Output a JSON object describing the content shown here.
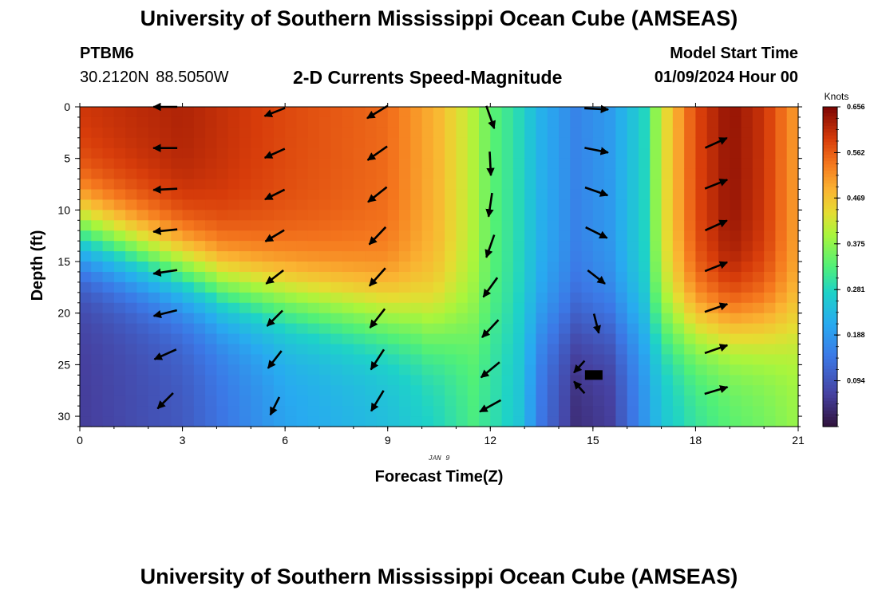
{
  "header": {
    "title": "University of Southern Mississippi Ocean Cube (AMSEAS)",
    "station": "PTBM6",
    "coords": "30.2120N  88.5050W",
    "subtitle": "2-D Currents Speed-Magnitude",
    "model_start_label": "Model Start Time",
    "model_start_date": "01/09/2024 Hour 00"
  },
  "footer": {
    "title": "University of Southern Mississippi Ocean Cube (AMSEAS)"
  },
  "chart_data": {
    "type": "heatmap",
    "title": "2-D Currents Speed-Magnitude",
    "xlabel": "Forecast Time(Z)",
    "ylabel": "Depth (ft)",
    "date_label": "JAN 9",
    "x_ticks": [
      0,
      3,
      6,
      9,
      12,
      15,
      18,
      21
    ],
    "y_ticks": [
      0,
      5,
      10,
      15,
      20,
      25,
      30
    ],
    "xlim": [
      0,
      21
    ],
    "ylim": [
      0,
      31
    ],
    "colorbar": {
      "units": "Knots",
      "min": 0.0,
      "max": 0.656,
      "ticks": [
        "0.656",
        "0.562",
        "0.469",
        "0.375",
        "0.281",
        "0.188",
        "0.094"
      ],
      "tick_values": [
        0.656,
        0.562,
        0.469,
        0.375,
        0.281,
        0.188,
        0.094
      ]
    },
    "surface_speed_by_hour": [
      {
        "t": 0,
        "v": 0.6
      },
      {
        "t": 3,
        "v": 0.62
      },
      {
        "t": 6,
        "v": 0.58
      },
      {
        "t": 9,
        "v": 0.55
      },
      {
        "t": 10.5,
        "v": 0.48
      },
      {
        "t": 11.5,
        "v": 0.4
      },
      {
        "t": 12,
        "v": 0.34
      },
      {
        "t": 12.8,
        "v": 0.29
      },
      {
        "t": 13.5,
        "v": 0.22
      },
      {
        "t": 14.5,
        "v": 0.16
      },
      {
        "t": 15.5,
        "v": 0.19
      },
      {
        "t": 16.5,
        "v": 0.28
      },
      {
        "t": 17,
        "v": 0.42
      },
      {
        "t": 18,
        "v": 0.58
      },
      {
        "t": 19,
        "v": 0.64
      },
      {
        "t": 20,
        "v": 0.6
      },
      {
        "t": 21,
        "v": 0.5
      }
    ],
    "bottom_speed_by_hour": [
      {
        "t": 0,
        "v": 0.06
      },
      {
        "t": 3,
        "v": 0.1
      },
      {
        "t": 6,
        "v": 0.2
      },
      {
        "t": 9,
        "v": 0.24
      },
      {
        "t": 10.5,
        "v": 0.28
      },
      {
        "t": 11.5,
        "v": 0.32
      },
      {
        "t": 12,
        "v": 0.3
      },
      {
        "t": 12.8,
        "v": 0.26
      },
      {
        "t": 13.5,
        "v": 0.14
      },
      {
        "t": 14.5,
        "v": 0.04
      },
      {
        "t": 15.5,
        "v": 0.06
      },
      {
        "t": 16.5,
        "v": 0.18
      },
      {
        "t": 17,
        "v": 0.25
      },
      {
        "t": 18,
        "v": 0.3
      },
      {
        "t": 19,
        "v": 0.33
      },
      {
        "t": 20,
        "v": 0.35
      },
      {
        "t": 21,
        "v": 0.38
      }
    ],
    "vectors": [
      {
        "t": 2.5,
        "d": 0,
        "dx": -1.0,
        "dy": 0.0,
        "len": 0.6
      },
      {
        "t": 2.5,
        "d": 4,
        "dx": -1.0,
        "dy": 0.0,
        "len": 0.6
      },
      {
        "t": 2.5,
        "d": 8,
        "dx": -1.0,
        "dy": 0.05,
        "len": 0.6
      },
      {
        "t": 2.5,
        "d": 12,
        "dx": -1.0,
        "dy": 0.1,
        "len": 0.6
      },
      {
        "t": 2.5,
        "d": 16,
        "dx": -1.0,
        "dy": 0.15,
        "len": 0.6
      },
      {
        "t": 2.5,
        "d": 20,
        "dx": -1.0,
        "dy": 0.25,
        "len": 0.6
      },
      {
        "t": 2.5,
        "d": 24,
        "dx": -1.0,
        "dy": 0.45,
        "len": 0.6
      },
      {
        "t": 2.5,
        "d": 28.5,
        "dx": -0.8,
        "dy": 0.8,
        "len": 0.55
      },
      {
        "t": 5.7,
        "d": 0.5,
        "dx": -1.0,
        "dy": 0.4,
        "len": 0.55
      },
      {
        "t": 5.7,
        "d": 4.5,
        "dx": -1.0,
        "dy": 0.45,
        "len": 0.55
      },
      {
        "t": 5.7,
        "d": 8.5,
        "dx": -1.0,
        "dy": 0.5,
        "len": 0.55
      },
      {
        "t": 5.7,
        "d": 12.5,
        "dx": -1.0,
        "dy": 0.6,
        "len": 0.55
      },
      {
        "t": 5.7,
        "d": 16.5,
        "dx": -0.9,
        "dy": 0.7,
        "len": 0.55
      },
      {
        "t": 5.7,
        "d": 20.5,
        "dx": -0.8,
        "dy": 0.8,
        "len": 0.55
      },
      {
        "t": 5.7,
        "d": 24.5,
        "dx": -0.7,
        "dy": 0.9,
        "len": 0.55
      },
      {
        "t": 5.7,
        "d": 29,
        "dx": -0.5,
        "dy": 1.0,
        "len": 0.5
      },
      {
        "t": 8.7,
        "d": 0.5,
        "dx": -1.0,
        "dy": 0.6,
        "len": 0.6
      },
      {
        "t": 8.7,
        "d": 4.5,
        "dx": -1.0,
        "dy": 0.7,
        "len": 0.6
      },
      {
        "t": 8.7,
        "d": 8.5,
        "dx": -1.0,
        "dy": 0.8,
        "len": 0.6
      },
      {
        "t": 8.7,
        "d": 12.5,
        "dx": -0.85,
        "dy": 0.9,
        "len": 0.6
      },
      {
        "t": 8.7,
        "d": 16.5,
        "dx": -0.8,
        "dy": 0.9,
        "len": 0.6
      },
      {
        "t": 8.7,
        "d": 20.5,
        "dx": -0.7,
        "dy": 0.9,
        "len": 0.6
      },
      {
        "t": 8.7,
        "d": 24.5,
        "dx": -0.65,
        "dy": 1.0,
        "len": 0.6
      },
      {
        "t": 8.7,
        "d": 28.5,
        "dx": -0.6,
        "dy": 1.0,
        "len": 0.6
      },
      {
        "t": 12.0,
        "d": 1.0,
        "dx": 0.35,
        "dy": 1.0,
        "len": 0.6
      },
      {
        "t": 12.0,
        "d": 5.5,
        "dx": 0.05,
        "dy": 1.0,
        "len": 0.6
      },
      {
        "t": 12.0,
        "d": 9.5,
        "dx": -0.15,
        "dy": 1.0,
        "len": 0.6
      },
      {
        "t": 12.0,
        "d": 13.5,
        "dx": -0.35,
        "dy": 1.0,
        "len": 0.6
      },
      {
        "t": 12.0,
        "d": 17.5,
        "dx": -0.65,
        "dy": 0.9,
        "len": 0.6
      },
      {
        "t": 12.0,
        "d": 21.5,
        "dx": -0.75,
        "dy": 0.8,
        "len": 0.6
      },
      {
        "t": 12.0,
        "d": 25.5,
        "dx": -0.85,
        "dy": 0.7,
        "len": 0.6
      },
      {
        "t": 12.0,
        "d": 29,
        "dx": -1.0,
        "dy": 0.55,
        "len": 0.6
      },
      {
        "t": 15.1,
        "d": 0.2,
        "dx": 1.0,
        "dy": 0.05,
        "len": 0.6
      },
      {
        "t": 15.1,
        "d": 4.2,
        "dx": 1.0,
        "dy": 0.2,
        "len": 0.6
      },
      {
        "t": 15.1,
        "d": 8.2,
        "dx": 1.0,
        "dy": 0.35,
        "len": 0.6
      },
      {
        "t": 15.1,
        "d": 12.2,
        "dx": 1.0,
        "dy": 0.5,
        "len": 0.6
      },
      {
        "t": 15.1,
        "d": 16.5,
        "dx": 0.9,
        "dy": 0.7,
        "len": 0.55
      },
      {
        "t": 15.1,
        "d": 21.0,
        "dx": 0.25,
        "dy": 1.0,
        "len": 0.5
      },
      {
        "t": 14.6,
        "d": 25.2,
        "dx": -0.8,
        "dy": 0.9,
        "len": 0.4
      },
      {
        "t": 14.6,
        "d": 27.2,
        "dx": -0.8,
        "dy": -0.9,
        "len": 0.4
      },
      {
        "t": 18.6,
        "d": 3.5,
        "dx": 1.0,
        "dy": -0.45,
        "len": 0.6
      },
      {
        "t": 18.6,
        "d": 7.5,
        "dx": 1.0,
        "dy": -0.4,
        "len": 0.6
      },
      {
        "t": 18.6,
        "d": 11.5,
        "dx": 1.0,
        "dy": -0.45,
        "len": 0.6
      },
      {
        "t": 18.6,
        "d": 15.5,
        "dx": 1.0,
        "dy": -0.4,
        "len": 0.6
      },
      {
        "t": 18.6,
        "d": 19.5,
        "dx": 1.0,
        "dy": -0.35,
        "len": 0.6
      },
      {
        "t": 18.6,
        "d": 23.5,
        "dx": 1.0,
        "dy": -0.35,
        "len": 0.6
      },
      {
        "t": 18.6,
        "d": 27.5,
        "dx": 1.0,
        "dy": -0.3,
        "len": 0.6
      }
    ]
  }
}
